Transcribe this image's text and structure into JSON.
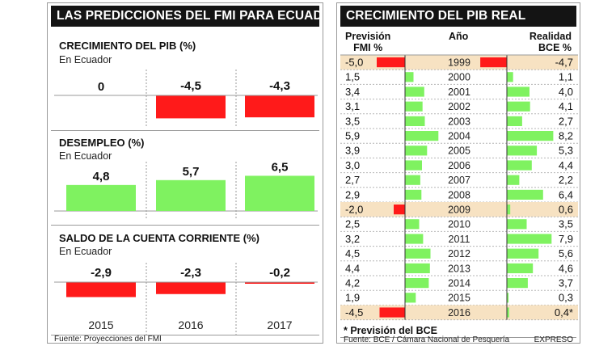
{
  "left": {
    "title": "LAS PREDICCIONES DEL FMI PARA ECUADOR",
    "source": "Fuente: Proyecciones del FMI",
    "years": [
      "2015",
      "2016",
      "2017"
    ]
  },
  "right": {
    "title": "CRECIMIENTO DEL PIB REAL",
    "col_forecast_line1": "Previsión",
    "col_forecast_line2": "FMI %",
    "col_year": "Año",
    "col_actual_line1": "Realidad",
    "col_actual_line2": "BCE %",
    "note": "* Previsión del BCE",
    "source": "Fuente: BCE / Cámara Nacional de Pesquería",
    "credit": "EXPRESO"
  },
  "colors": {
    "positive": "#7ff260",
    "negative": "#ff1a1a",
    "highlight": "#f7e2c2",
    "header": "#141414"
  },
  "chart_data": [
    {
      "type": "bar",
      "title": "CRECIMIENTO DEL PIB (%)",
      "subtitle": "En Ecuador",
      "categories": [
        "2015",
        "2016",
        "2017"
      ],
      "values": [
        0,
        -4.5,
        -4.3
      ],
      "labels": [
        "0",
        "-4,5",
        "-4,3"
      ]
    },
    {
      "type": "bar",
      "title": "DESEMPLEO (%)",
      "subtitle": "En Ecuador",
      "categories": [
        "2015",
        "2016",
        "2017"
      ],
      "values": [
        4.8,
        5.7,
        6.5
      ],
      "labels": [
        "4,8",
        "5,7",
        "6,5"
      ]
    },
    {
      "type": "bar",
      "title": "SALDO DE LA CUENTA CORRIENTE (%)",
      "subtitle": "En Ecuador",
      "categories": [
        "2015",
        "2016",
        "2017"
      ],
      "values": [
        -2.9,
        -2.3,
        -0.2
      ],
      "labels": [
        "-2,9",
        "-2,3",
        "-0,2"
      ]
    },
    {
      "type": "bar",
      "title": "CRECIMIENTO DEL PIB REAL",
      "categories": [
        "1999",
        "2000",
        "2001",
        "2002",
        "2003",
        "2004",
        "2005",
        "2006",
        "2007",
        "2008",
        "2009",
        "2010",
        "2011",
        "2012",
        "2013",
        "2014",
        "2015",
        "2016"
      ],
      "series": [
        {
          "name": "Previsión FMI %",
          "values": [
            -5.0,
            1.5,
            3.4,
            3.1,
            3.5,
            5.9,
            3.9,
            3.0,
            2.7,
            2.9,
            -2.0,
            2.5,
            3.2,
            4.5,
            4.4,
            4.2,
            1.9,
            -4.5
          ],
          "labels": [
            "-5,0",
            "1,5",
            "3,4",
            "3,1",
            "3,5",
            "5,9",
            "3,9",
            "3,0",
            "2,7",
            "2,9",
            "-2,0",
            "2,5",
            "3,2",
            "4,5",
            "4,4",
            "4,2",
            "1,9",
            "-4,5"
          ]
        },
        {
          "name": "Realidad BCE %",
          "values": [
            -4.7,
            1.1,
            4.0,
            4.1,
            2.7,
            8.2,
            5.3,
            4.4,
            2.2,
            6.4,
            0.6,
            3.5,
            7.9,
            5.6,
            4.6,
            3.7,
            0.3,
            0.4
          ],
          "labels": [
            "-4,7",
            "1,1",
            "4,0",
            "4,1",
            "2,7",
            "8,2",
            "5,3",
            "4,4",
            "2,2",
            "6,4",
            "0,6",
            "3,5",
            "7,9",
            "5,6",
            "4,6",
            "3,7",
            "0,3",
            "0,4*"
          ]
        }
      ],
      "highlight_years": [
        "1999",
        "2009",
        "2016"
      ]
    }
  ]
}
